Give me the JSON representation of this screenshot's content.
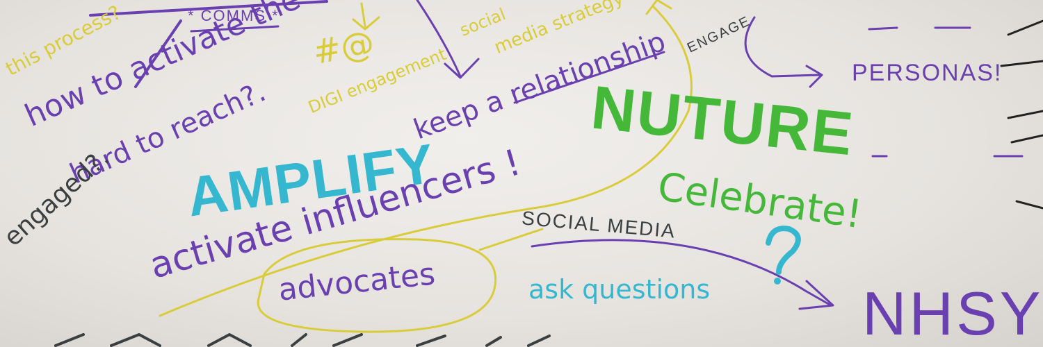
{
  "words": {
    "comms": "* COMMS *",
    "this_process": "this process?",
    "process": "process?",
    "hashtag_at": "#@",
    "digi_engagement": "DIGI engagement",
    "social": "social",
    "media_strategy": "media strategy",
    "engage": "ENGAGE",
    "how_to_activate": "how to activate the",
    "hard_to_reach": "hard to reach?.",
    "keep_relationship": "keep a relationship",
    "personas": "PERSONAS!",
    "nuture": "NUTURE",
    "amplify": "AMPLIFY",
    "activate_influencers": "activate influencers !",
    "celebrate": "Celebrate!",
    "engaged": "engaged?.",
    "social_media": "SOCIAL MEDIA",
    "question_mark": "?",
    "advocates": "advocates",
    "ask_questions": "ask questions",
    "nhsy": "NHSY"
  },
  "colors": {
    "purple": "#6a3fb0",
    "yellow": "#d9cc3a",
    "teal": "#35b8cf",
    "green": "#45b83a",
    "darkgray": "#3a3f42"
  }
}
